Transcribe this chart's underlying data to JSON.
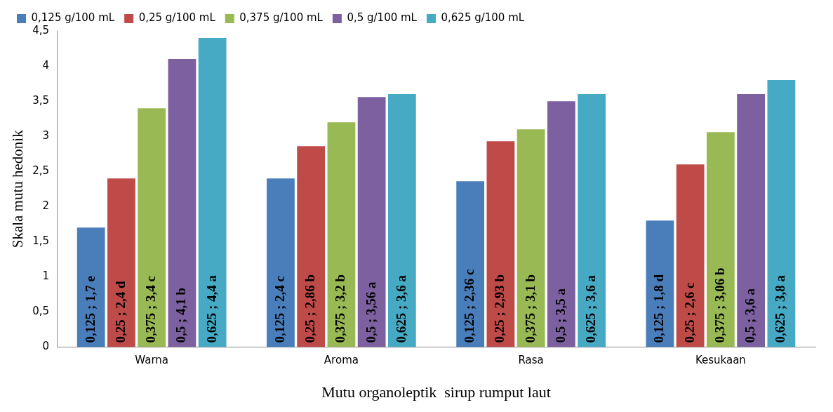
{
  "chart_data": {
    "type": "bar",
    "xlabel": "Mutu organoleptik  sirup rumput laut",
    "ylabel": "Skala mutu hedonik",
    "categories": [
      "Warna",
      "Aroma",
      "Rasa",
      "Kesukaan"
    ],
    "series": [
      {
        "name": "0,125 g/100 mL",
        "color": "#4a7ebb",
        "values": [
          1.7,
          2.4,
          2.36,
          1.8
        ],
        "value_labels": [
          "0,125 ; 1,7 e",
          "0,125 ; 2,4 c",
          "0,125 ; 2,36 c",
          "0,125 ; 1,8 d"
        ]
      },
      {
        "name": "0,25 g/100 mL",
        "color": "#be4b48",
        "values": [
          2.4,
          2.86,
          2.93,
          2.6
        ],
        "value_labels": [
          "0,25 ; 2,4 d",
          "0,25 ; 2,86 b",
          "0,25 ; 2,93 b",
          "0,25 ; 2,6 c"
        ]
      },
      {
        "name": "0,375 g/100 mL",
        "color": "#98b954",
        "values": [
          3.4,
          3.2,
          3.1,
          3.06
        ],
        "value_labels": [
          "0,375 ; 3,4 c",
          "0,375 ; 3,2 b",
          "0,375 ; 3,1 b",
          "0,375 ; 3,06 b"
        ]
      },
      {
        "name": "0,5 g/100 mL",
        "color": "#7d60a0",
        "values": [
          4.1,
          3.56,
          3.5,
          3.6
        ],
        "value_labels": [
          "0,5 ; 4,1 b",
          "0,5 ; 3,56 a",
          "0,5 ; 3,5 a",
          "0,5 ; 3,6 a"
        ]
      },
      {
        "name": "0,625 g/100 mL",
        "color": "#46aac5",
        "values": [
          4.4,
          3.6,
          3.6,
          3.8
        ],
        "value_labels": [
          "0,625 ; 4,4 a",
          "0,625 ; 3,6 a",
          "0,625 ; 3,6 a",
          "0,625 ; 3,8 a"
        ]
      }
    ],
    "ylim": [
      0,
      4.5
    ],
    "yticks": [
      0,
      {
        "value": 0.5,
        "label": "0,5"
      },
      1,
      {
        "value": 1.5,
        "label": "1,5"
      },
      2,
      {
        "value": 2.5,
        "label": "2,5"
      },
      3,
      {
        "value": 3.5,
        "label": "3,5"
      },
      4,
      {
        "value": 4.5,
        "label": "4,5"
      }
    ],
    "grid": false,
    "legend": "top"
  }
}
